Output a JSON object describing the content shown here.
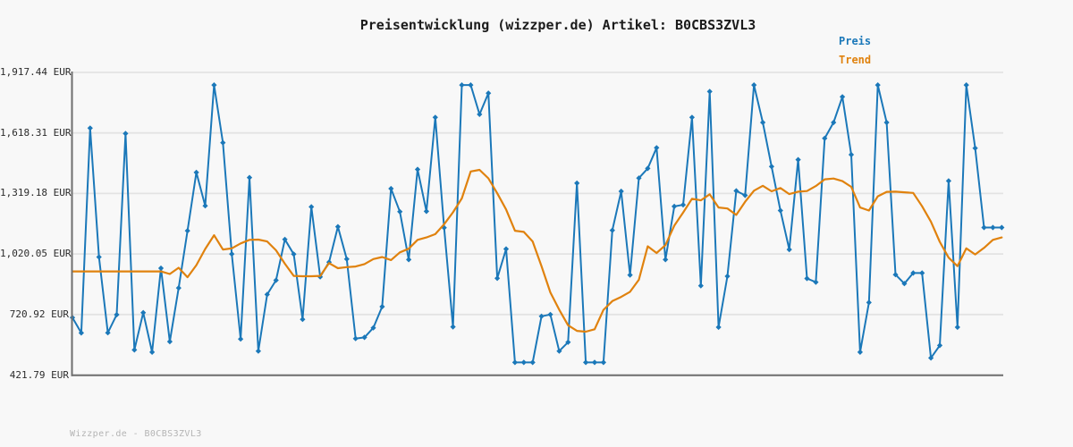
{
  "title": "Preisentwicklung (wizzper.de) Artikel: B0CBS3ZVL3",
  "legend": {
    "preis_label": "Preis",
    "trend_label": "Trend"
  },
  "footer": {
    "watermark": "Wizzper.de - B0CBS3ZVL3"
  },
  "colors": {
    "preis": "#1b78b9",
    "trend": "#e0820e",
    "grid": "#e3e3e3",
    "axis": "#6e6e6e",
    "background": "#f8f8f8",
    "title_text": "#1b1b1b",
    "tick_text": "#2b2b2b",
    "watermark_text": "#b4b4b4"
  },
  "y_axis": {
    "unit": "EUR",
    "tick_labels": [
      "1,917.44 EUR",
      "1,618.31 EUR",
      "1,319.18 EUR",
      "1,020.05 EUR",
      "720.92 EUR",
      "421.79 EUR"
    ],
    "tick_values": [
      1917.44,
      1618.31,
      1319.18,
      1020.05,
      720.92,
      421.79
    ]
  },
  "chart_data": {
    "type": "line",
    "title": "Preisentwicklung (wizzper.de) Artikel: B0CBS3ZVL3",
    "xlabel": "",
    "ylabel": "",
    "unit": "EUR",
    "ylim": [
      421.79,
      1917.44
    ],
    "grid": "horizontal",
    "legend_position": "top-right",
    "x_tick_labels": "none",
    "n_points": 106,
    "series": [
      {
        "name": "Preis",
        "color": "#1b78b9",
        "marker": "diamond",
        "values": [
          706,
          630,
          1642,
          1005,
          631,
          720,
          1615,
          546,
          730,
          535,
          950,
          587,
          852,
          1135,
          1423,
          1258,
          1855,
          1570,
          1020,
          600,
          1398,
          540,
          820,
          890,
          1092,
          1019,
          697,
          1253,
          907,
          980,
          1155,
          995,
          602,
          608,
          655,
          760,
          1343,
          1229,
          992,
          1438,
          1231,
          1695,
          1150,
          660,
          1855,
          1855,
          1710,
          1815,
          900,
          1045,
          484,
          484,
          484,
          712,
          721,
          540,
          584,
          1370,
          484,
          484,
          484,
          1137,
          1330,
          916,
          1395,
          1443,
          1545,
          992,
          1255,
          1263,
          1695,
          863,
          1823,
          658,
          910,
          1332,
          1310,
          1855,
          1670,
          1452,
          1235,
          1042,
          1486,
          899,
          881,
          1592,
          1670,
          1797,
          1511,
          535,
          780,
          1855,
          1670,
          918,
          874,
          926,
          926,
          506,
          568,
          1381,
          658,
          1855,
          1543,
          1151,
          1151,
          1151
        ]
      },
      {
        "name": "Trend",
        "color": "#e0820e",
        "marker": "none",
        "values": [
          934,
          934,
          934,
          934,
          934,
          934,
          934,
          934,
          934,
          934,
          934,
          921,
          952,
          905,
          965,
          1045,
          1113,
          1042,
          1048,
          1072,
          1090,
          1091,
          1082,
          1038,
          972,
          912,
          910,
          910,
          912,
          975,
          950,
          955,
          958,
          970,
          995,
          1005,
          990,
          1028,
          1046,
          1090,
          1102,
          1118,
          1167,
          1226,
          1295,
          1428,
          1436,
          1394,
          1320,
          1240,
          1135,
          1129,
          1082,
          960,
          830,
          745,
          668,
          640,
          636,
          648,
          744,
          787,
          808,
          833,
          893,
          1058,
          1025,
          1064,
          1160,
          1225,
          1293,
          1285,
          1315,
          1250,
          1245,
          1213,
          1278,
          1333,
          1357,
          1330,
          1346,
          1316,
          1328,
          1331,
          1356,
          1389,
          1393,
          1380,
          1352,
          1250,
          1235,
          1305,
          1327,
          1328,
          1325,
          1322,
          1256,
          1180,
          1080,
          1002,
          960,
          1048,
          1018,
          1050,
          1090,
          1102
        ]
      }
    ]
  }
}
